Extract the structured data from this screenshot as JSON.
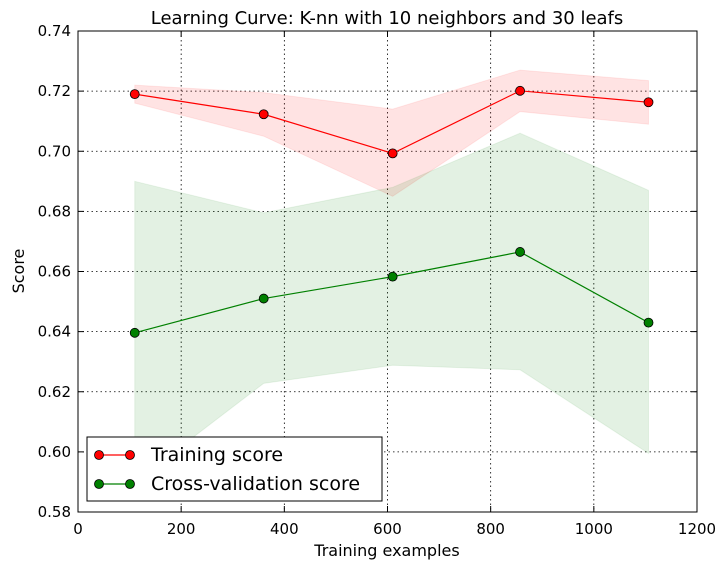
{
  "chart_data": {
    "type": "line",
    "title": "Learning Curve: K-nn with 10 neighbors and 30 leafs",
    "xlabel": "Training examples",
    "ylabel": "Score",
    "xlim": [
      0,
      1200
    ],
    "ylim": [
      0.58,
      0.74
    ],
    "x_ticks": [
      0,
      200,
      400,
      600,
      800,
      1000,
      1200
    ],
    "y_ticks": [
      0.58,
      0.6,
      0.62,
      0.64,
      0.66,
      0.68,
      0.7,
      0.72,
      0.74
    ],
    "grid": true,
    "legend_position": "lower-left",
    "x": [
      110,
      360,
      610,
      857,
      1106
    ],
    "series": [
      {
        "name": "Training score",
        "color": "#ff0000",
        "values": [
          0.719,
          0.7123,
          0.6993,
          0.7201,
          0.7163
        ],
        "band_upper": [
          0.722,
          0.7195,
          0.714,
          0.727,
          0.7235
        ],
        "band_lower": [
          0.716,
          0.705,
          0.685,
          0.7132,
          0.709
        ]
      },
      {
        "name": "Cross-validation score",
        "color": "#008000",
        "values": [
          0.6396,
          0.651,
          0.6583,
          0.6665,
          0.643
        ],
        "band_upper": [
          0.69,
          0.6795,
          0.688,
          0.706,
          0.687
        ],
        "band_lower": [
          0.59,
          0.6228,
          0.6288,
          0.6273,
          0.5995
        ]
      }
    ]
  }
}
